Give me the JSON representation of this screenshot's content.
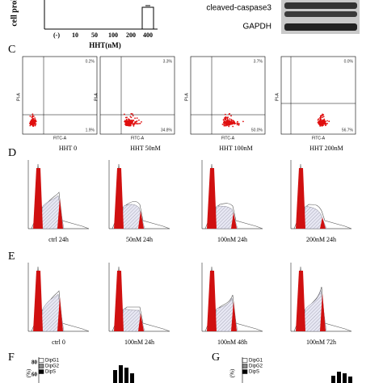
{
  "top": {
    "y_label": "cell proli",
    "x_ticks": [
      "(-)",
      "10",
      "50",
      "100",
      "200",
      "400"
    ],
    "x_label": "HHT(nM)",
    "blot_labels": [
      "cleaved-caspase3",
      "GAPDH"
    ]
  },
  "panel_c": {
    "label": "C",
    "y_axis": "PI-A",
    "x_axis": "FITC-A",
    "plots": [
      {
        "upper_right": "0.2%",
        "lower_right": "1.9%",
        "caption": "HHT 0"
      },
      {
        "upper_right": "3.3%",
        "lower_right": "34.8%",
        "caption": "HHT 50nM"
      },
      {
        "upper_right": "3.7%",
        "lower_right": "50.0%",
        "caption": "HHT 100nM"
      },
      {
        "upper_right": "0.0%",
        "lower_right": "56.7%",
        "caption": "HHT 200nM"
      }
    ]
  },
  "panel_d": {
    "label": "D",
    "captions": [
      "ctrl  24h",
      "50nM  24h",
      "100nM  24h",
      "200nM  24h"
    ]
  },
  "panel_e": {
    "label": "E",
    "captions": [
      "ctrl  0",
      "100nM  24h",
      "100nM  48h",
      "100nM  72h"
    ]
  },
  "panel_f": {
    "label": "F",
    "legend": [
      "DipG1",
      "DipG2",
      "DipS"
    ],
    "y_unit": "(%)",
    "y_ticks": [
      "80",
      "60"
    ]
  },
  "panel_g": {
    "label": "G",
    "legend": [
      "DipG1",
      "DipG2",
      "DipS"
    ],
    "y_unit": "(%)"
  }
}
